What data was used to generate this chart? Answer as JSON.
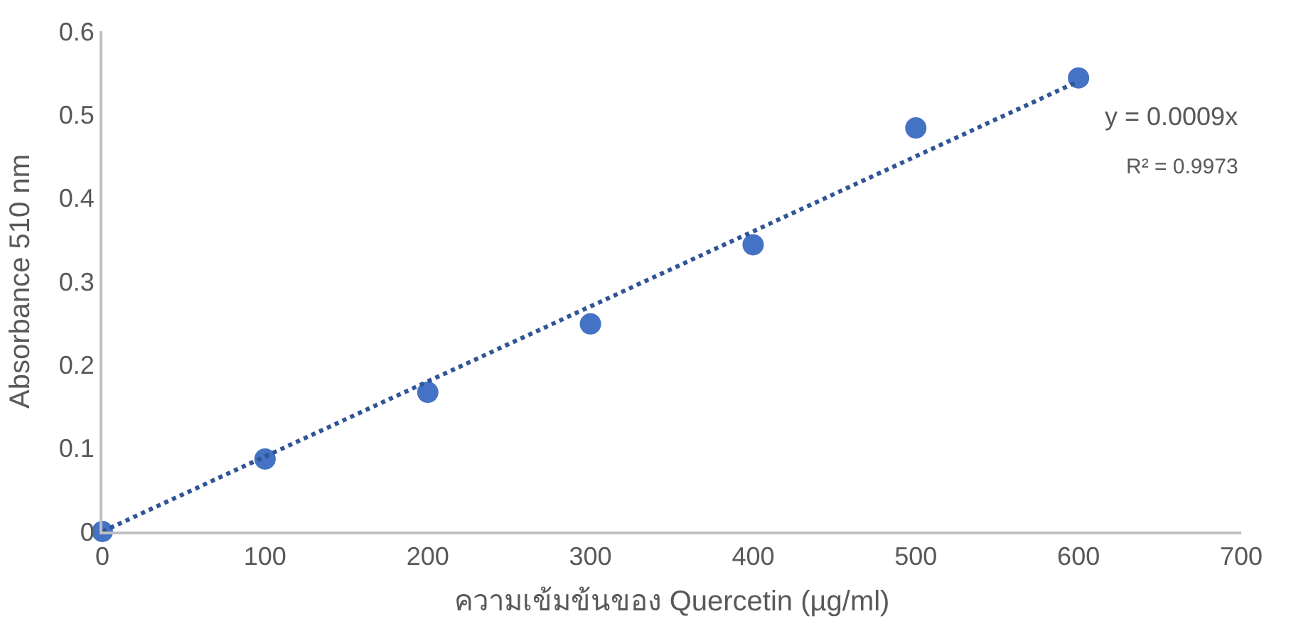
{
  "chart_data": {
    "type": "scatter",
    "xlabel": "ความเข้มข้นของ Quercetin (µg/ml)",
    "ylabel": "Absorbance 510 nm",
    "x": [
      0,
      100,
      200,
      300,
      400,
      500,
      600
    ],
    "series": [
      {
        "color": "#4472c4",
        "marker": "circle",
        "values": [
          0,
          0.087,
          0.167,
          0.249,
          0.344,
          0.484,
          0.544
        ]
      },
      {
        "type": "line",
        "color": "#2f5597",
        "line_style": "dotted",
        "marker": "none",
        "x": [
          0,
          600
        ],
        "values": [
          0,
          0.54
        ]
      }
    ],
    "annotations": [
      "y = 0.0009x",
      "R² = 0.9973"
    ],
    "xlim": [
      0,
      700
    ],
    "xticks": [
      0,
      100,
      200,
      300,
      400,
      500,
      600,
      700
    ],
    "ylim": [
      0,
      0.6
    ],
    "yticks": [
      0,
      0.1,
      0.2,
      0.3,
      0.4,
      0.5,
      0.6
    ]
  }
}
